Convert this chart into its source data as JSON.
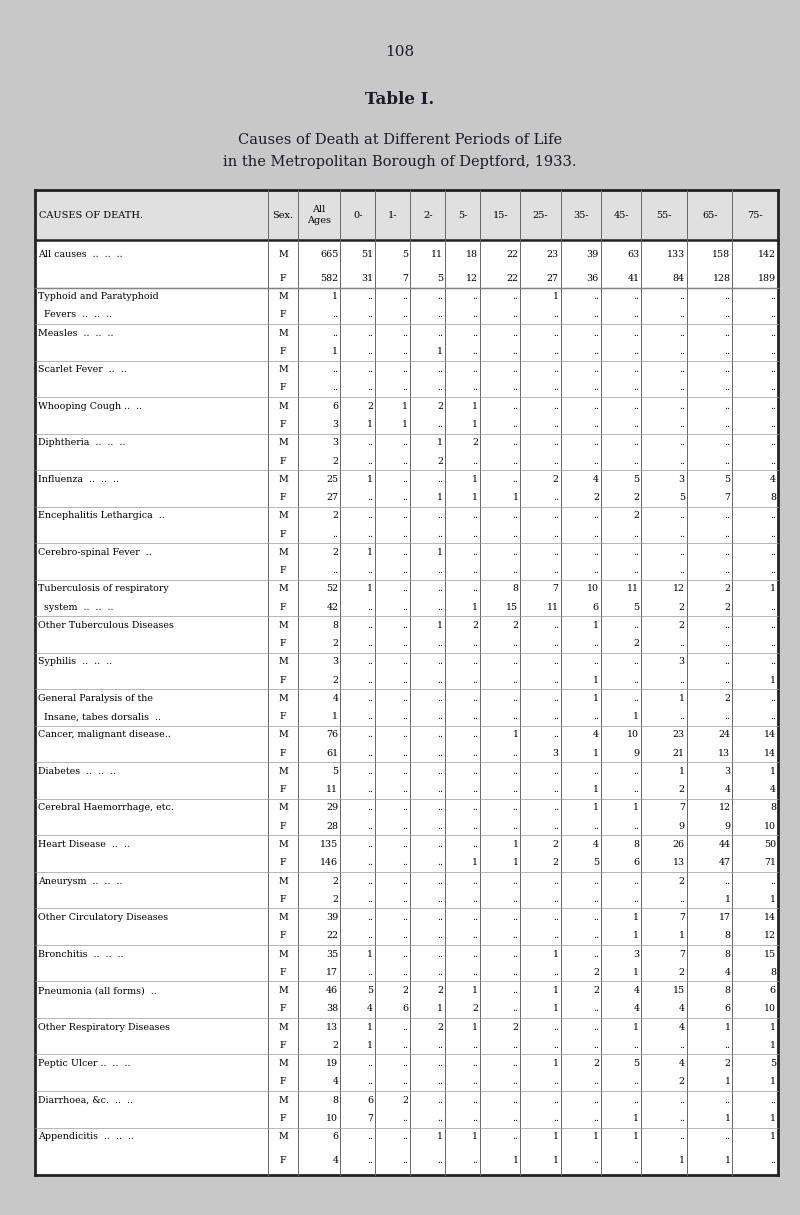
{
  "page_number": "108",
  "table_title": "Table I.",
  "subtitle1": "Causes of Death at Different Periods of Life",
  "subtitle2": "in the Metropolitan Borough of Deptford, 1933.",
  "col_headers": [
    "CAUSES OF DEATH.",
    "Sex.",
    "All\nAges",
    "0-",
    "1-",
    "2-",
    "5-",
    "15-",
    "25-",
    "35-",
    "45-",
    "55-",
    "65-",
    "75-"
  ],
  "rows": [
    [
      "All causes  ..  ..  ..",
      "M",
      "665",
      "51",
      "5",
      "11",
      "18",
      "22",
      "23",
      "39",
      "63",
      "133",
      "158",
      "142"
    ],
    [
      "",
      "F",
      "582",
      "31",
      "7",
      "5",
      "12",
      "22",
      "27",
      "36",
      "41",
      "84",
      "128",
      "189"
    ],
    [
      "Typhoid and Paratyphoid",
      "M",
      "1",
      "..",
      "..",
      "..",
      "..",
      "..",
      "1",
      "..",
      "..",
      "..",
      "..",
      ".."
    ],
    [
      "  Fevers  ..  ..  ..",
      "F",
      "..",
      "..",
      "..",
      "..",
      "..",
      "..",
      "..",
      "..",
      "..",
      "..",
      "..",
      ".."
    ],
    [
      "Measles  ..  ..  ..",
      "M",
      "..",
      "..",
      "..",
      "..",
      "..",
      "..",
      "..",
      "..",
      "..",
      "..",
      "..",
      ".."
    ],
    [
      "",
      "F",
      "1",
      "..",
      "..",
      "1",
      "..",
      "..",
      "..",
      "..",
      "..",
      "..",
      "..",
      ".."
    ],
    [
      "Scarlet Fever  ..  ..",
      "M",
      "..",
      "..",
      "..",
      "..",
      "..",
      "..",
      "..",
      "..",
      "..",
      "..",
      "..",
      ".."
    ],
    [
      "",
      "F",
      "..",
      "..",
      "..",
      "..",
      "..",
      "..",
      "..",
      "..",
      "..",
      "..",
      "..",
      ".."
    ],
    [
      "Whooping Cough ..  ..",
      "M",
      "6",
      "2",
      "1",
      "2",
      "1",
      "..",
      "..",
      "..",
      "..",
      "..",
      "..",
      ".."
    ],
    [
      "",
      "F",
      "3",
      "1",
      "1",
      "..",
      "1",
      "..",
      "..",
      "..",
      "..",
      "..",
      "..",
      ".."
    ],
    [
      "Diphtheria  ..  ..  ..",
      "M",
      "3",
      "..",
      "..",
      "1",
      "2",
      "..",
      "..",
      "..",
      "..",
      "..",
      "..",
      ".."
    ],
    [
      "",
      "F",
      "2",
      "..",
      "..",
      "2",
      "..",
      "..",
      "..",
      "..",
      "..",
      "..",
      "..",
      ".."
    ],
    [
      "Influenza  ..  ..  ..",
      "M",
      "25",
      "1",
      "..",
      "..",
      "1",
      "..",
      "2",
      "4",
      "5",
      "3",
      "5",
      "4"
    ],
    [
      "",
      "F",
      "27",
      "..",
      "..",
      "1",
      "1",
      "1",
      "..",
      "2",
      "2",
      "5",
      "7",
      "8"
    ],
    [
      "Encephalitis Lethargica  ..",
      "M",
      "2",
      "..",
      "..",
      "..",
      "..",
      "..",
      "..",
      "..",
      "2",
      "..",
      "..",
      ".."
    ],
    [
      "",
      "F",
      "..",
      "..",
      "..",
      "..",
      "..",
      "..",
      "..",
      "..",
      "..",
      "..",
      "..",
      ".."
    ],
    [
      "Cerebro-spinal Fever  ..",
      "M",
      "2",
      "1",
      "..",
      "1",
      "..",
      "..",
      "..",
      "..",
      "..",
      "..",
      "..",
      ".."
    ],
    [
      "",
      "F",
      "..",
      "..",
      "..",
      "..",
      "..",
      "..",
      "..",
      "..",
      "..",
      "..",
      "..",
      ".."
    ],
    [
      "Tuberculosis of respiratory",
      "M",
      "52",
      "1",
      "..",
      "..",
      "..",
      "8",
      "7",
      "10",
      "11",
      "12",
      "2",
      "1"
    ],
    [
      "  system  ..  ..  ..",
      "F",
      "42",
      "..",
      "..",
      "..",
      "1",
      "15",
      "11",
      "6",
      "5",
      "2",
      "2",
      ".."
    ],
    [
      "Other Tuberculous Diseases",
      "M",
      "8",
      "..",
      "..",
      "1",
      "2",
      "2",
      "..",
      "1",
      "..",
      "2",
      "..",
      ".."
    ],
    [
      "",
      "F",
      "2",
      "..",
      "..",
      "..",
      "..",
      "..",
      "..",
      "..",
      "2",
      "..",
      "..",
      ".."
    ],
    [
      "Syphilis  ..  ..  ..",
      "M",
      "3",
      "..",
      "..",
      "..",
      "..",
      "..",
      "..",
      "..",
      "..",
      "3",
      "..",
      ".."
    ],
    [
      "",
      "F",
      "2",
      "..",
      "..",
      "..",
      "..",
      "..",
      "..",
      "1",
      "..",
      "..",
      "..",
      "1"
    ],
    [
      "General Paralysis of the",
      "M",
      "4",
      "..",
      "..",
      "..",
      "..",
      "..",
      "..",
      "1",
      "..",
      "1",
      "2",
      ".."
    ],
    [
      "  Insane, tabes dorsalis  ..",
      "F",
      "1",
      "..",
      "..",
      "..",
      "..",
      "..",
      "..",
      "..",
      "1",
      "..",
      "..",
      ".."
    ],
    [
      "Cancer, malignant disease..",
      "M",
      "76",
      "..",
      "..",
      "..",
      "..",
      "1",
      "..",
      "4",
      "10",
      "23",
      "24",
      "14"
    ],
    [
      "",
      "F",
      "61",
      "..",
      "..",
      "..",
      "..",
      "..",
      "3",
      "1",
      "9",
      "21",
      "13",
      "14"
    ],
    [
      "Diabetes  ..  ..  ..",
      "M",
      "5",
      "..",
      "..",
      "..",
      "..",
      "..",
      "..",
      "..",
      "..",
      "1",
      "3",
      "1"
    ],
    [
      "",
      "F",
      "11",
      "..",
      "..",
      "..",
      "..",
      "..",
      "..",
      "1",
      "..",
      "2",
      "4",
      "4"
    ],
    [
      "Cerebral Haemorrhage, etc.",
      "M",
      "29",
      "..",
      "..",
      "..",
      "..",
      "..",
      "..",
      "1",
      "1",
      "7",
      "12",
      "8"
    ],
    [
      "",
      "F",
      "28",
      "..",
      "..",
      "..",
      "..",
      "..",
      "..",
      "..",
      "..",
      "9",
      "9",
      "10"
    ],
    [
      "Heart Disease  ..  ..",
      "M",
      "135",
      "..",
      "..",
      "..",
      "..",
      "1",
      "2",
      "4",
      "8",
      "26",
      "44",
      "50"
    ],
    [
      "",
      "F",
      "146",
      "..",
      "..",
      "..",
      "1",
      "1",
      "2",
      "5",
      "6",
      "13",
      "47",
      "71"
    ],
    [
      "Aneurysm  ..  ..  ..",
      "M",
      "2",
      "..",
      "..",
      "..",
      "..",
      "..",
      "..",
      "..",
      "..",
      "2",
      "..",
      ".."
    ],
    [
      "",
      "F",
      "2",
      "..",
      "..",
      "..",
      "..",
      "..",
      "..",
      "..",
      "..",
      "..",
      "1",
      "1"
    ],
    [
      "Other Circulatory Diseases",
      "M",
      "39",
      "..",
      "..",
      "..",
      "..",
      "..",
      "..",
      "..",
      "1",
      "7",
      "17",
      "14"
    ],
    [
      "",
      "F",
      "22",
      "..",
      "..",
      "..",
      "..",
      "..",
      "..",
      "..",
      "1",
      "1",
      "8",
      "12"
    ],
    [
      "Bronchitis  ..  ..  ..",
      "M",
      "35",
      "1",
      "..",
      "..",
      "..",
      "..",
      "1",
      "..",
      "3",
      "7",
      "8",
      "15"
    ],
    [
      "",
      "F",
      "17",
      "..",
      "..",
      "..",
      "..",
      "..",
      "..",
      "2",
      "1",
      "2",
      "4",
      "8"
    ],
    [
      "Pneumonia (all forms)  ..",
      "M",
      "46",
      "5",
      "2",
      "2",
      "1",
      "..",
      "1",
      "2",
      "4",
      "15",
      "8",
      "6"
    ],
    [
      "",
      "F",
      "38",
      "4",
      "6",
      "1",
      "2",
      "..",
      "1",
      "..",
      "4",
      "4",
      "6",
      "10"
    ],
    [
      "Other Respiratory Diseases",
      "M",
      "13",
      "1",
      "..",
      "2",
      "1",
      "2",
      "..",
      "..",
      "1",
      "4",
      "1",
      "1"
    ],
    [
      "",
      "F",
      "2",
      "1",
      "..",
      "..",
      "..",
      "..",
      "..",
      "..",
      "..",
      "..",
      "..",
      "1"
    ],
    [
      "Peptic Ulcer ..  ..  ..",
      "M",
      "19",
      "..",
      "..",
      "..",
      "..",
      "..",
      "1",
      "2",
      "5",
      "4",
      "2",
      "5"
    ],
    [
      "",
      "F",
      "4",
      "..",
      "..",
      "..",
      "..",
      "..",
      "..",
      "..",
      "..",
      "2",
      "1",
      "1"
    ],
    [
      "Diarrhoea, &c.  ..  ..",
      "M",
      "8",
      "6",
      "2",
      "..",
      "..",
      "..",
      "..",
      "..",
      "..",
      "..",
      "..",
      ".."
    ],
    [
      "",
      "F",
      "10",
      "7",
      "..",
      "..",
      "..",
      "..",
      "..",
      "..",
      "1",
      "..",
      "1",
      "1"
    ],
    [
      "Appendicitis  ..  ..  ..",
      "M",
      "6",
      "..",
      "..",
      "1",
      "1",
      "..",
      "1",
      "1",
      "1",
      "..",
      "..",
      "1"
    ],
    [
      "",
      "F",
      "4",
      "..",
      "..",
      "..",
      "..",
      "1",
      "1",
      "..",
      "..",
      "1",
      "1",
      ".."
    ]
  ],
  "bg_color": "#c8c8c8",
  "table_bg": "#ffffff",
  "header_bg": "#d8d8d8",
  "fig_width": 8.0,
  "fig_height": 12.15,
  "dpi": 100
}
